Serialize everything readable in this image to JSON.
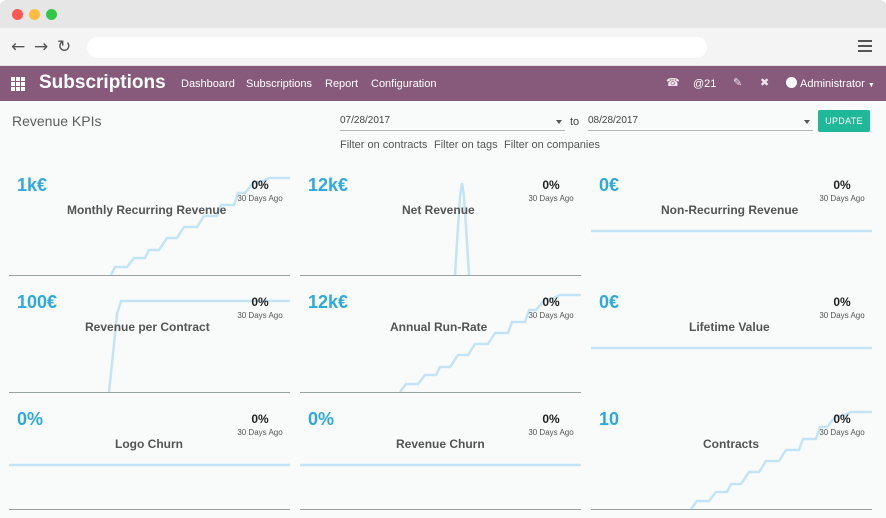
{
  "window": {
    "dot_colors": [
      "#fc5753",
      "#fdbc40",
      "#33c748"
    ]
  },
  "browser": {
    "back_icon": "arrow-left-icon",
    "forward_icon": "arrow-right-icon",
    "reload_icon": "reload-icon",
    "menu_icon": "hamburger-menu-icon",
    "address": ""
  },
  "appbar": {
    "title": "Subscriptions",
    "menu": [
      "Dashboard",
      "Subscriptions",
      "Report",
      "Configuration"
    ],
    "mentions_count": "@21",
    "user": "Administrator",
    "bg_color": "#875a7b"
  },
  "page": {
    "title": "Revenue KPIs",
    "start_date": "07/28/2017",
    "to_label": "to",
    "end_date": "08/28/2017",
    "update_label": "UPDATE",
    "filters": [
      "Filter on contracts",
      "Filter on tags",
      "Filter on companies"
    ]
  },
  "kpis": [
    {
      "value": "1k€",
      "name": "Monthly Recurring Revenue",
      "pct": "0%",
      "ago": "30 Days Ago"
    },
    {
      "value": "12k€",
      "name": "Net Revenue",
      "pct": "0%",
      "ago": "30 Days Ago"
    },
    {
      "value": "0€",
      "name": "Non-Recurring Revenue",
      "pct": "0%",
      "ago": "30 Days Ago"
    },
    {
      "value": "100€",
      "name": "Revenue per Contract",
      "pct": "0%",
      "ago": "30 Days Ago"
    },
    {
      "value": "12k€",
      "name": "Annual Run-Rate",
      "pct": "0%",
      "ago": "30 Days Ago"
    },
    {
      "value": "0€",
      "name": "Lifetime Value",
      "pct": "0%",
      "ago": "30 Days Ago"
    },
    {
      "value": "0%",
      "name": "Logo Churn",
      "pct": "0%",
      "ago": "30 Days Ago"
    },
    {
      "value": "0%",
      "name": "Revenue Churn",
      "pct": "0%",
      "ago": "30 Days Ago"
    },
    {
      "value": "10",
      "name": "Contracts",
      "pct": "0%",
      "ago": "30 Days Ago"
    }
  ],
  "colors": {
    "kpi_value": "#2ea8e0",
    "sparkline": "#c3e4f5",
    "update_button": "#21b799"
  }
}
